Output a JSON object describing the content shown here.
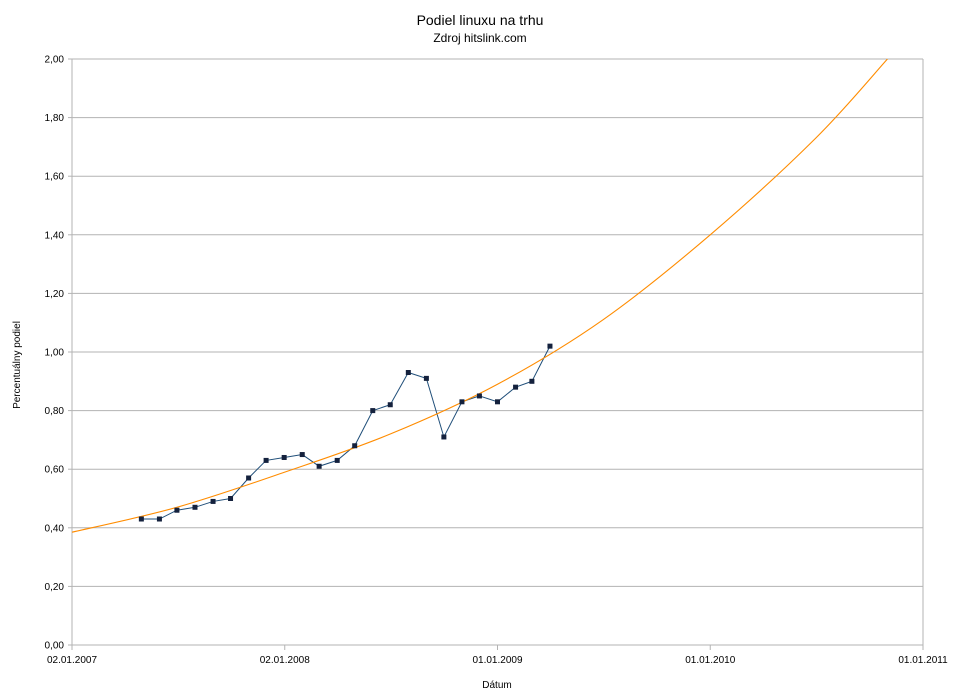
{
  "chart_data": {
    "type": "line",
    "title": "Podiel linuxu na trhu",
    "subtitle": "Zdroj hitslink.com",
    "xlabel": "Dátum",
    "ylabel": "Percentuálny podiel",
    "xlim": [
      "2007-01-02",
      "2011-01-01"
    ],
    "ylim": [
      0,
      2
    ],
    "x_ticks": [
      {
        "date": "2007-01-02",
        "label": "02.01.2007"
      },
      {
        "date": "2008-01-02",
        "label": "02.01.2008"
      },
      {
        "date": "2009-01-01",
        "label": "01.01.2009"
      },
      {
        "date": "2010-01-01",
        "label": "01.01.2010"
      },
      {
        "date": "2011-01-01",
        "label": "01.01.2011"
      }
    ],
    "y_ticks": [
      {
        "value": 0,
        "label": "0,00"
      },
      {
        "value": 0.2,
        "label": "0,20"
      },
      {
        "value": 0.4,
        "label": "0,40"
      },
      {
        "value": 0.6,
        "label": "0,60"
      },
      {
        "value": 0.8,
        "label": "0,80"
      },
      {
        "value": 1.0,
        "label": "1,00"
      },
      {
        "value": 1.2,
        "label": "1,20"
      },
      {
        "value": 1.4,
        "label": "1,40"
      },
      {
        "value": 1.6,
        "label": "1,60"
      },
      {
        "value": 1.8,
        "label": "1,80"
      },
      {
        "value": 2.0,
        "label": "2,00"
      }
    ],
    "grid": true,
    "legend": "none",
    "series": [
      {
        "kind": "data",
        "color": "#1f4e79",
        "marker_color": "#14213d",
        "points": [
          {
            "x": "2007-05-01",
            "y": 0.43
          },
          {
            "x": "2007-06-01",
            "y": 0.43
          },
          {
            "x": "2007-07-01",
            "y": 0.46
          },
          {
            "x": "2007-08-01",
            "y": 0.47
          },
          {
            "x": "2007-09-01",
            "y": 0.49
          },
          {
            "x": "2007-10-01",
            "y": 0.5
          },
          {
            "x": "2007-11-01",
            "y": 0.57
          },
          {
            "x": "2007-12-01",
            "y": 0.63
          },
          {
            "x": "2008-01-01",
            "y": 0.64
          },
          {
            "x": "2008-02-01",
            "y": 0.65
          },
          {
            "x": "2008-03-01",
            "y": 0.61
          },
          {
            "x": "2008-04-01",
            "y": 0.63
          },
          {
            "x": "2008-05-01",
            "y": 0.68
          },
          {
            "x": "2008-06-01",
            "y": 0.8
          },
          {
            "x": "2008-07-01",
            "y": 0.82
          },
          {
            "x": "2008-08-01",
            "y": 0.93
          },
          {
            "x": "2008-09-01",
            "y": 0.91
          },
          {
            "x": "2008-10-01",
            "y": 0.71
          },
          {
            "x": "2008-11-01",
            "y": 0.83
          },
          {
            "x": "2008-12-01",
            "y": 0.85
          },
          {
            "x": "2009-01-01",
            "y": 0.83
          },
          {
            "x": "2009-02-01",
            "y": 0.88
          },
          {
            "x": "2009-03-01",
            "y": 0.9
          },
          {
            "x": "2009-04-01",
            "y": 1.02
          }
        ]
      },
      {
        "kind": "trend",
        "color": "#ff8c00",
        "points": [
          {
            "x": "2007-01-02",
            "y": 0.385
          },
          {
            "x": "2007-07-01",
            "y": 0.47
          },
          {
            "x": "2008-01-02",
            "y": 0.59
          },
          {
            "x": "2008-07-01",
            "y": 0.72
          },
          {
            "x": "2009-01-01",
            "y": 0.89
          },
          {
            "x": "2009-07-01",
            "y": 1.11
          },
          {
            "x": "2010-01-01",
            "y": 1.4
          },
          {
            "x": "2010-07-01",
            "y": 1.73
          },
          {
            "x": "2010-11-01",
            "y": 2.0
          }
        ]
      }
    ]
  }
}
